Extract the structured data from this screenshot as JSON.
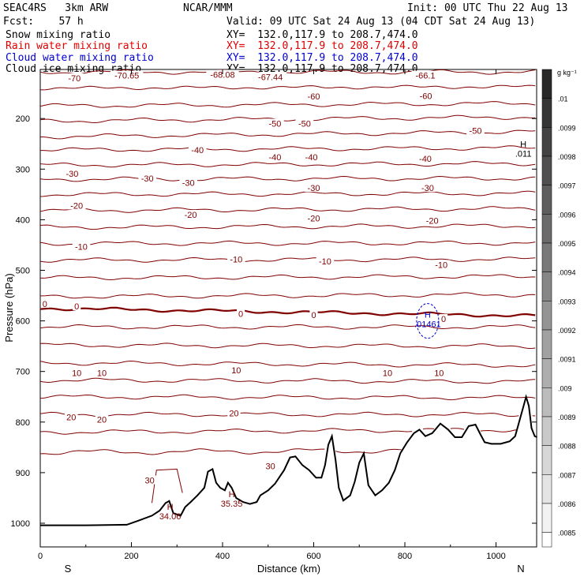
{
  "header": {
    "model": "SEAC4RS   3km ARW",
    "center": "NCAR/MMM",
    "init": "Init: 00 UTC Thu 22 Aug 13",
    "fcst": "Fcst:    57 h",
    "valid": "Valid: 09 UTC Sat 24 Aug 13 (04 CDT Sat 24 Aug 13)"
  },
  "fields": [
    {
      "name": "Snow mixing ratio",
      "xy": "XY=  132.0,117.9 to 208.7,474.0",
      "color": "#000000"
    },
    {
      "name": "Rain water mixing ratio",
      "xy": "XY=  132.0,117.9 to 208.7,474.0",
      "color": "#e00000"
    },
    {
      "name": "Cloud water mixing ratio",
      "xy": "XY=  132.0,117.9 to 208.7,474.0",
      "color": "#0000d0"
    },
    {
      "name": "Cloud ice mixing ratio",
      "xy": "XY=  132.0,117.9 to 208.7,474.0",
      "color": "#000000"
    }
  ],
  "chart_data": {
    "type": "cross-section",
    "xlabel": "Distance (km)",
    "ylabel": "Pressure (hPa)",
    "xlim": [
      0,
      1090
    ],
    "ylim": [
      1050,
      100
    ],
    "x_ticks": [
      "0",
      "200",
      "400",
      "600",
      "800",
      "1000"
    ],
    "y_ticks": [
      "200",
      "300",
      "400",
      "500",
      "600",
      "700",
      "800",
      "900",
      "1000"
    ],
    "end_labels": {
      "left": "S",
      "right": "N"
    },
    "isotherm_color": "#800000",
    "freezing_line_value": "0",
    "temperature_labels": [
      {
        "x": 75,
        "p": 120,
        "text": "-70"
      },
      {
        "x": 190,
        "p": 115,
        "text": "-70.65"
      },
      {
        "x": 400,
        "p": 113,
        "text": "-68.08"
      },
      {
        "x": 505,
        "p": 118,
        "text": "-67.44"
      },
      {
        "x": 845,
        "p": 115,
        "text": "-66.1"
      },
      {
        "x": 600,
        "p": 156,
        "text": "-60"
      },
      {
        "x": 846,
        "p": 155,
        "text": "-60"
      },
      {
        "x": 515,
        "p": 210,
        "text": "-50"
      },
      {
        "x": 580,
        "p": 210,
        "text": "-50"
      },
      {
        "x": 955,
        "p": 224,
        "text": "-50"
      },
      {
        "x": 345,
        "p": 262,
        "text": "-40"
      },
      {
        "x": 515,
        "p": 276,
        "text": "-40"
      },
      {
        "x": 595,
        "p": 276,
        "text": "-40"
      },
      {
        "x": 845,
        "p": 279,
        "text": "-40"
      },
      {
        "x": 70,
        "p": 309,
        "text": "-30"
      },
      {
        "x": 235,
        "p": 318,
        "text": "-30"
      },
      {
        "x": 325,
        "p": 327,
        "text": "-30"
      },
      {
        "x": 600,
        "p": 337,
        "text": "-30"
      },
      {
        "x": 850,
        "p": 337,
        "text": "-30"
      },
      {
        "x": 80,
        "p": 372,
        "text": "-20"
      },
      {
        "x": 330,
        "p": 390,
        "text": "-20"
      },
      {
        "x": 600,
        "p": 397,
        "text": "-20"
      },
      {
        "x": 860,
        "p": 402,
        "text": "-20"
      },
      {
        "x": 90,
        "p": 453,
        "text": "-10"
      },
      {
        "x": 430,
        "p": 478,
        "text": "-10"
      },
      {
        "x": 625,
        "p": 482,
        "text": "-10"
      },
      {
        "x": 880,
        "p": 489,
        "text": "-10"
      },
      {
        "x": 10,
        "p": 566,
        "text": "0"
      },
      {
        "x": 80,
        "p": 571,
        "text": "0"
      },
      {
        "x": 440,
        "p": 586,
        "text": "0"
      },
      {
        "x": 600,
        "p": 588,
        "text": "0"
      },
      {
        "x": 885,
        "p": 596,
        "text": "0"
      },
      {
        "x": 80,
        "p": 703,
        "text": "10"
      },
      {
        "x": 135,
        "p": 703,
        "text": "10"
      },
      {
        "x": 430,
        "p": 697,
        "text": "10"
      },
      {
        "x": 762,
        "p": 703,
        "text": "10"
      },
      {
        "x": 875,
        "p": 703,
        "text": "10"
      },
      {
        "x": 68,
        "p": 790,
        "text": "20"
      },
      {
        "x": 135,
        "p": 795,
        "text": "20"
      },
      {
        "x": 425,
        "p": 782,
        "text": "20"
      },
      {
        "x": 505,
        "p": 887,
        "text": "30"
      },
      {
        "x": 240,
        "p": 915,
        "text": "30"
      }
    ],
    "maxima": [
      {
        "x": 285,
        "p": 980,
        "mark": "H",
        "text": "34.06"
      },
      {
        "x": 420,
        "p": 955,
        "mark": "H",
        "text": "35.35"
      },
      {
        "x": 1060,
        "p": 263,
        "mark": "H",
        "text": ".011"
      },
      {
        "x": 850,
        "p": 600,
        "mark": "H",
        "text": ".01461"
      }
    ],
    "colorbar": {
      "unit": "g kg⁻¹",
      "labels": [
        ".01",
        ".0099",
        ".0098",
        ".0097",
        ".0096",
        ".0095",
        ".0094",
        ".0093",
        ".0092",
        ".0091",
        ".009",
        ".0089",
        ".0088",
        ".0087",
        ".0086",
        ".0085"
      ]
    }
  }
}
